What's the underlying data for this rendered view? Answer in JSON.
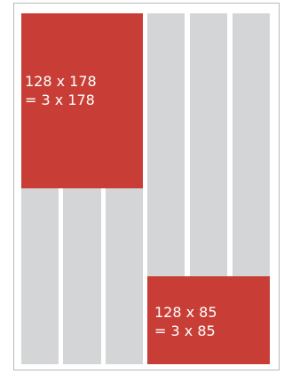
{
  "colors": {
    "background": "#ffffff",
    "border": "#b9b9b9",
    "column": "#d4d5d6",
    "accent": "#c83e36",
    "text": "#ffffff"
  },
  "blocks": [
    {
      "line1": "128 x 178",
      "line2": "= 3 x 178"
    },
    {
      "line1": "128 x 85",
      "line2": "= 3 x 85"
    }
  ]
}
